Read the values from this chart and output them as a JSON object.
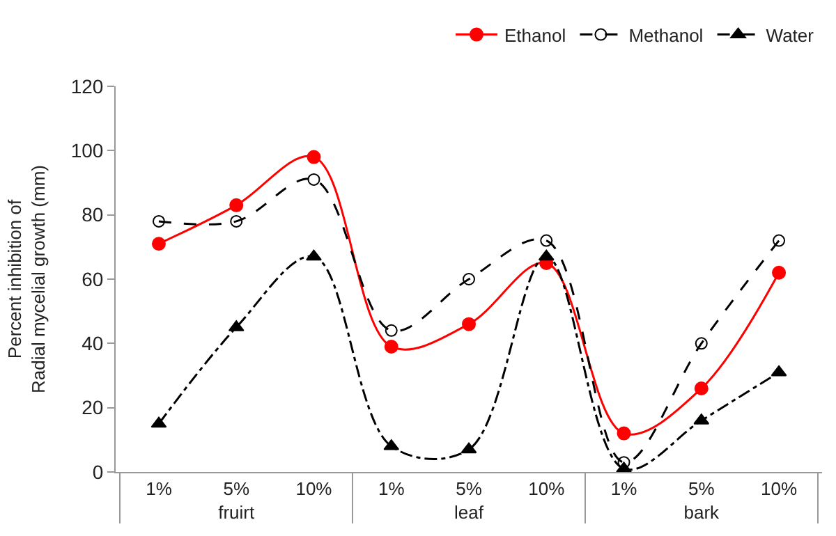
{
  "chart_data": {
    "type": "line",
    "ylabel": "Percent inhibition of\nRadial mycelial growth (mm)",
    "categories": [
      "1%",
      "5%",
      "10%",
      "1%",
      "5%",
      "10%",
      "1%",
      "5%",
      "10%"
    ],
    "annotations": [
      "fruirt",
      "leaf",
      "bark"
    ],
    "series": [
      {
        "name": "Ethanol",
        "color": "#ff0000",
        "marker": "circle",
        "line_style": "solid",
        "values": [
          71,
          83,
          98,
          39,
          46,
          65,
          12,
          26,
          62
        ]
      },
      {
        "name": "Methanol",
        "color": "#000000",
        "marker": "circle-open",
        "line_style": "dashed",
        "values": [
          78,
          78,
          91,
          44,
          60,
          72,
          3,
          40,
          72
        ]
      },
      {
        "name": "Water",
        "color": "#000000",
        "marker": "triangle",
        "line_style": "dashdot",
        "values": [
          15,
          45,
          67,
          8,
          7,
          67,
          1,
          16,
          31
        ]
      }
    ],
    "ylim": [
      0,
      120
    ],
    "yticks": [
      0,
      20,
      40,
      60,
      80,
      100,
      120
    ],
    "legend": "top right"
  }
}
